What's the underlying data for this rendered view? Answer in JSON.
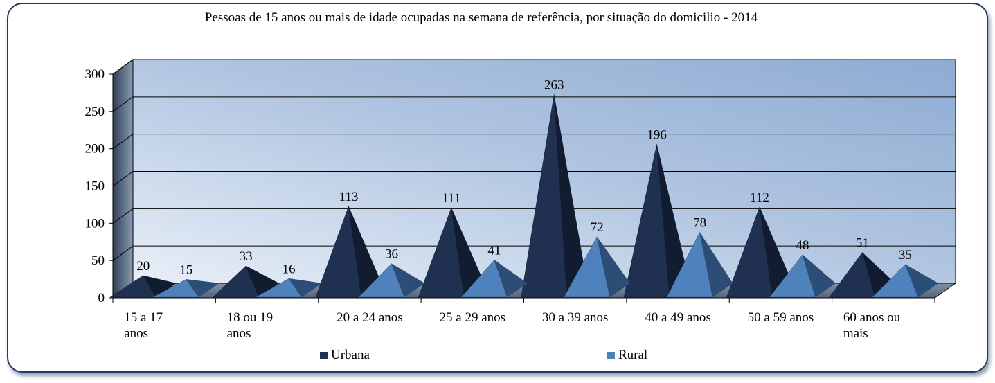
{
  "chart_data": {
    "type": "bar",
    "title": "Pessoas de 15 anos ou mais de idade ocupadas na semana de referência, por situação do domicilio - 2014",
    "categories": [
      "15 a 17 anos",
      "18 ou 19 anos",
      "20 a 24 anos",
      "25 a 29 anos",
      "30 a 39 anos",
      "40 a 49 anos",
      "50 a 59 anos",
      "60 anos ou mais"
    ],
    "category_lines": [
      [
        "15 a 17",
        "anos"
      ],
      [
        "18 ou 19",
        "anos"
      ],
      [
        "20 a 24 anos"
      ],
      [
        "25 a 29 anos"
      ],
      [
        "30 a 39 anos"
      ],
      [
        "40 a 49 anos"
      ],
      [
        "50 a 59 anos"
      ],
      [
        "60 anos ou",
        "mais"
      ]
    ],
    "series": [
      {
        "name": "Urbana",
        "values": [
          20,
          33,
          113,
          111,
          263,
          196,
          112,
          51
        ],
        "color": "#1f3050",
        "shade": "#111c30"
      },
      {
        "name": "Rural",
        "values": [
          15,
          16,
          36,
          41,
          72,
          78,
          48,
          35
        ],
        "color": "#4f81bd",
        "shade": "#2c4d75"
      }
    ],
    "ylim": [
      0,
      300
    ],
    "yticks": [
      "0",
      "50",
      "100",
      "150",
      "200",
      "250",
      "300"
    ],
    "grid": true,
    "legend": "bottom",
    "bar_shape": "pyramid-3d"
  }
}
